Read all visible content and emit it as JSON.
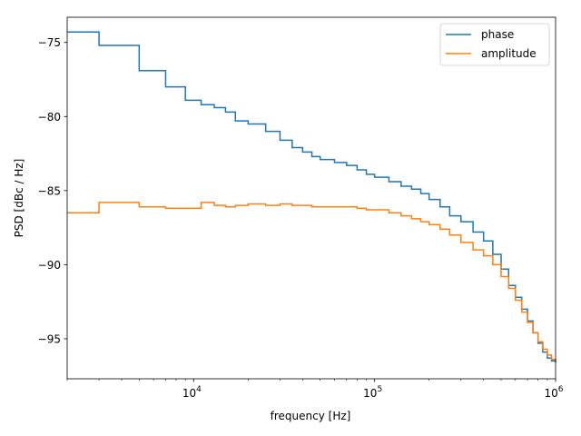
{
  "chart_data": {
    "type": "line",
    "title": "",
    "xlabel": "frequency  [Hz]",
    "ylabel": "PSD [dBc / Hz]",
    "x_scale": "log",
    "xlim": [
      2000,
      1000000
    ],
    "ylim": [
      -97.7,
      -73.3
    ],
    "grid": false,
    "legend_position": "top-right",
    "x_ticks": [
      {
        "value": 10000,
        "label_base": "10",
        "label_exp": "4"
      },
      {
        "value": 100000,
        "label_base": "10",
        "label_exp": "5"
      },
      {
        "value": 1000000,
        "label_base": "10",
        "label_exp": "6"
      }
    ],
    "y_ticks": [
      {
        "value": -75,
        "label": "−75"
      },
      {
        "value": -80,
        "label": "−80"
      },
      {
        "value": -85,
        "label": "−85"
      },
      {
        "value": -90,
        "label": "−90"
      },
      {
        "value": -95,
        "label": "−95"
      }
    ],
    "series": [
      {
        "name": "phase",
        "color": "#1f77b4",
        "x": [
          2000,
          3000,
          5000,
          7000,
          9000,
          11000,
          13000,
          15000,
          17000,
          20000,
          25000,
          30000,
          35000,
          40000,
          45000,
          50000,
          60000,
          70000,
          80000,
          90000,
          100000,
          120000,
          140000,
          160000,
          180000,
          200000,
          230000,
          260000,
          300000,
          350000,
          400000,
          450000,
          500000,
          550000,
          600000,
          650000,
          700000,
          750000,
          800000,
          850000,
          900000,
          950000,
          1000000
        ],
        "y": [
          -74.3,
          -75.2,
          -76.9,
          -78.0,
          -78.9,
          -79.2,
          -79.4,
          -79.7,
          -80.3,
          -80.5,
          -81.0,
          -81.6,
          -82.1,
          -82.4,
          -82.7,
          -82.9,
          -83.1,
          -83.3,
          -83.6,
          -83.9,
          -84.1,
          -84.4,
          -84.7,
          -84.9,
          -85.2,
          -85.6,
          -86.1,
          -86.7,
          -87.1,
          -87.8,
          -88.4,
          -89.3,
          -90.3,
          -91.4,
          -92.2,
          -93.0,
          -93.8,
          -94.6,
          -95.3,
          -95.9,
          -96.3,
          -96.5,
          -96.6
        ]
      },
      {
        "name": "amplitude",
        "color": "#ff7f0e",
        "x": [
          2000,
          3000,
          5000,
          7000,
          9000,
          11000,
          13000,
          15000,
          17000,
          20000,
          25000,
          30000,
          35000,
          40000,
          45000,
          50000,
          60000,
          70000,
          80000,
          90000,
          100000,
          120000,
          140000,
          160000,
          180000,
          200000,
          230000,
          260000,
          300000,
          350000,
          400000,
          450000,
          500000,
          550000,
          600000,
          650000,
          700000,
          750000,
          800000,
          850000,
          900000,
          950000,
          1000000
        ],
        "y": [
          -86.5,
          -85.8,
          -86.1,
          -86.2,
          -86.2,
          -85.8,
          -86.0,
          -86.1,
          -86.0,
          -85.9,
          -86.0,
          -85.9,
          -86.0,
          -86.0,
          -86.1,
          -86.1,
          -86.1,
          -86.1,
          -86.2,
          -86.3,
          -86.3,
          -86.5,
          -86.7,
          -86.9,
          -87.1,
          -87.3,
          -87.6,
          -88.0,
          -88.5,
          -89.0,
          -89.4,
          -90.0,
          -90.8,
          -91.6,
          -92.4,
          -93.2,
          -93.9,
          -94.6,
          -95.2,
          -95.7,
          -96.1,
          -96.4,
          -96.5
        ]
      }
    ]
  }
}
